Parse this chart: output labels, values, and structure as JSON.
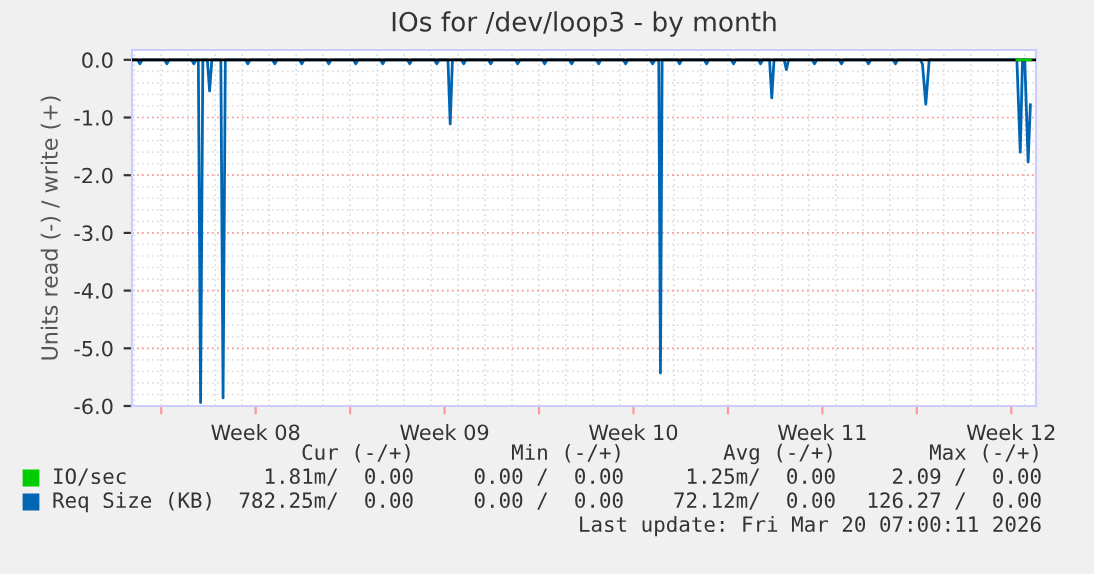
{
  "chart_data": {
    "type": "line",
    "title": "IOs for /dev/loop3 - by month",
    "ylabel": "Units read (-) / write (+)",
    "xlim": [
      "2026-02-14T22:00",
      "2026-03-20T10:00"
    ],
    "ylim": [
      -6,
      0.17
    ],
    "xticks": [
      {
        "value": "2026-02-16",
        "label": null
      },
      {
        "value": "2026-02-19T12:00",
        "label": "Week 08"
      },
      {
        "value": "2026-02-23",
        "label": null
      },
      {
        "value": "2026-02-26T12:00",
        "label": "Week 09"
      },
      {
        "value": "2026-03-02",
        "label": null
      },
      {
        "value": "2026-03-05T12:00",
        "label": "Week 10"
      },
      {
        "value": "2026-03-09",
        "label": null
      },
      {
        "value": "2026-03-12T12:00",
        "label": "Week 11"
      },
      {
        "value": "2026-03-16",
        "label": null
      },
      {
        "value": "2026-03-19T12:00",
        "label": "Week 12"
      }
    ],
    "yticks": [
      {
        "value": 0,
        "label": "0.0"
      },
      {
        "value": -1,
        "label": "-1.0"
      },
      {
        "value": -2,
        "label": "-2.0"
      },
      {
        "value": -3,
        "label": "-3.0"
      },
      {
        "value": -4,
        "label": "-4.0"
      },
      {
        "value": -5,
        "label": "-5.0"
      },
      {
        "value": -6,
        "label": "-6.0"
      }
    ],
    "grid": true,
    "legend": "bottom",
    "ref_lines": [
      {
        "axis": "y",
        "value": 0,
        "color": "#000000"
      }
    ],
    "series": [
      {
        "name": "IO/sec",
        "color": "#00cc00",
        "x": [
          "2026-03-19T17:00",
          "2026-03-19T20:00",
          "2026-03-20T00:00",
          "2026-03-20T05:00"
        ],
        "values": [
          0,
          0,
          0,
          0
        ]
      },
      {
        "name": "Req Size (KB)",
        "color": "#0066b3",
        "x": [
          "2026-02-14T22:00",
          "2026-02-15T03:00",
          "2026-02-15T05:00",
          "2026-02-15T07:00",
          "2026-02-16T03:00",
          "2026-02-16T05:00",
          "2026-02-16T07:00",
          "2026-02-17T03:00",
          "2026-02-17T05:00",
          "2026-02-17T07:00",
          "2026-02-17T09:00",
          "2026-02-17T11:00",
          "2026-02-17T13:00",
          "2026-02-17T17:00",
          "2026-02-17T19:00",
          "2026-02-17T21:00",
          "2026-02-18T05:00",
          "2026-02-18T07:00",
          "2026-02-18T09:00",
          "2026-02-19T03:00",
          "2026-02-19T05:00",
          "2026-02-19T07:00",
          "2026-02-20T03:00",
          "2026-02-20T05:00",
          "2026-02-20T07:00",
          "2026-02-21T03:00",
          "2026-02-21T05:00",
          "2026-02-21T07:00",
          "2026-02-22T03:00",
          "2026-02-22T05:00",
          "2026-02-22T07:00",
          "2026-02-23T03:00",
          "2026-02-23T05:00",
          "2026-02-23T07:00",
          "2026-02-24T03:00",
          "2026-02-24T05:00",
          "2026-02-24T07:00",
          "2026-02-25T03:00",
          "2026-02-25T05:00",
          "2026-02-25T07:00",
          "2026-02-26T03:00",
          "2026-02-26T05:00",
          "2026-02-26T07:00",
          "2026-02-26T15:00",
          "2026-02-26T17:00",
          "2026-02-26T19:00",
          "2026-02-27T03:00",
          "2026-02-27T05:00",
          "2026-02-27T07:00",
          "2026-02-28T03:00",
          "2026-02-28T05:00",
          "2026-02-28T07:00",
          "2026-03-01T03:00",
          "2026-03-01T05:00",
          "2026-03-01T07:00",
          "2026-03-02T03:00",
          "2026-03-02T05:00",
          "2026-03-02T07:00",
          "2026-03-03T03:00",
          "2026-03-03T05:00",
          "2026-03-03T07:00",
          "2026-03-04T03:00",
          "2026-03-04T05:00",
          "2026-03-04T07:00",
          "2026-03-05T03:00",
          "2026-03-05T05:00",
          "2026-03-05T07:00",
          "2026-03-06T03:00",
          "2026-03-06T05:00",
          "2026-03-06T07:00",
          "2026-03-06T10:30",
          "2026-03-06T12:00",
          "2026-03-06T13:30",
          "2026-03-07T03:00",
          "2026-03-07T05:00",
          "2026-03-07T07:00",
          "2026-03-08T03:00",
          "2026-03-08T05:00",
          "2026-03-08T07:00",
          "2026-03-09T03:00",
          "2026-03-09T05:00",
          "2026-03-09T07:00",
          "2026-03-10T03:00",
          "2026-03-10T05:00",
          "2026-03-10T07:00",
          "2026-03-10T13:00",
          "2026-03-10T15:00",
          "2026-03-10T17:00",
          "2026-03-11T02:00",
          "2026-03-11T04:00",
          "2026-03-11T06:00",
          "2026-03-12T03:00",
          "2026-03-12T05:00",
          "2026-03-12T07:00",
          "2026-03-13T03:00",
          "2026-03-13T05:00",
          "2026-03-13T07:00",
          "2026-03-14T03:00",
          "2026-03-14T05:00",
          "2026-03-14T07:00",
          "2026-03-15T03:00",
          "2026-03-15T05:00",
          "2026-03-15T07:00",
          "2026-03-16T03:00",
          "2026-03-16T05:00",
          "2026-03-16T08:00",
          "2026-03-16T11:00",
          "2026-03-19T17:00",
          "2026-03-19T20:00",
          "2026-03-19T22:00",
          "2026-03-20T00:00",
          "2026-03-20T03:00",
          "2026-03-20T05:00"
        ],
        "values": [
          0,
          0,
          -0.07,
          0,
          0,
          -0.07,
          0,
          0,
          -0.07,
          0,
          0,
          -5.94,
          0,
          0,
          -0.54,
          0,
          0,
          -5.86,
          0,
          0,
          -0.07,
          0,
          0,
          -0.07,
          0,
          0,
          -0.07,
          0,
          0,
          -0.07,
          0,
          0,
          -0.07,
          0,
          0,
          -0.07,
          0,
          0,
          -0.07,
          0,
          0,
          -0.07,
          0,
          0,
          -1.11,
          0,
          0,
          -0.07,
          0,
          0,
          -0.07,
          0,
          0,
          -0.07,
          0,
          0,
          -0.07,
          0,
          0,
          -0.07,
          0,
          0,
          -0.07,
          0,
          0,
          -0.07,
          0,
          0,
          -0.07,
          0,
          0,
          -5.43,
          0,
          0,
          -0.07,
          0,
          0,
          -0.07,
          0,
          0,
          -0.07,
          0,
          0,
          -0.07,
          0,
          0,
          -0.66,
          0,
          0,
          -0.17,
          0,
          0,
          -0.07,
          0,
          0,
          -0.07,
          0,
          0,
          -0.07,
          0,
          0,
          -0.07,
          0,
          0,
          -0.07,
          -0.77,
          0,
          0,
          -1.6,
          0,
          0,
          -1.77,
          -0.78
        ]
      }
    ],
    "annotations": [
      "Cur (-/+)",
      "Min (-/+)",
      "Avg (-/+)",
      "Max (-/+)",
      "1.81m/  0.00",
      "0.00 /  0.00",
      "1.25m/  0.00",
      "2.09 /  0.00",
      "782.25m/  0.00",
      "0.00 /  0.00",
      "72.12m/  0.00",
      "126.27 /  0.00",
      "Last update: Fri Mar 20 07:00:11 2026"
    ]
  }
}
